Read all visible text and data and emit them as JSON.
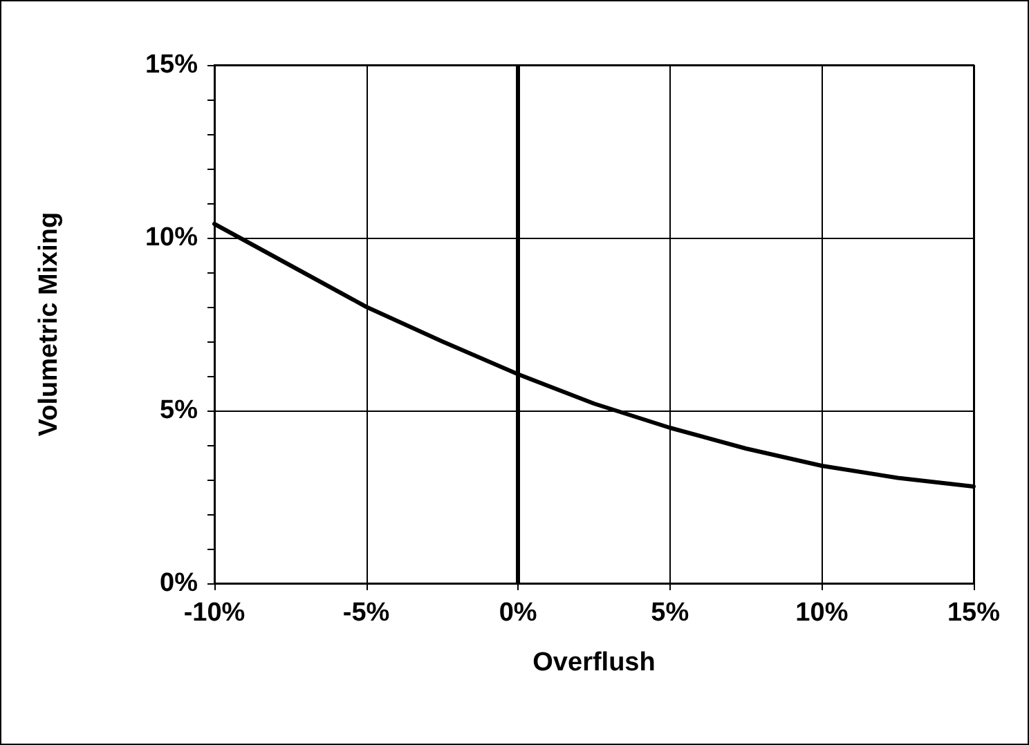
{
  "chart_data": {
    "type": "line",
    "xlabel": "Overflush",
    "ylabel": "Volumetric Mixing",
    "x": [
      -10,
      -7.5,
      -5,
      -2.5,
      0,
      2.5,
      5,
      7.5,
      10,
      12.5,
      15
    ],
    "series": [
      {
        "color": "#000000",
        "values": [
          10.4,
          9.2,
          8.0,
          7.0,
          6.05,
          5.2,
          4.5,
          3.9,
          3.4,
          3.05,
          2.8
        ]
      }
    ],
    "xlim": [
      -10,
      15
    ],
    "xticks": [
      {
        "value": -10,
        "label": "-10%"
      },
      {
        "value": -5,
        "label": "-5%"
      },
      {
        "value": 0,
        "label": "0%"
      },
      {
        "value": 5,
        "label": "5%"
      },
      {
        "value": 10,
        "label": "10%"
      },
      {
        "value": 15,
        "label": "15%"
      }
    ],
    "ylim": [
      0,
      15
    ],
    "yticks": [
      {
        "value": 0,
        "label": "0%"
      },
      {
        "value": 1,
        "label": null
      },
      {
        "value": 2,
        "label": null
      },
      {
        "value": 3,
        "label": null
      },
      {
        "value": 4,
        "label": null
      },
      {
        "value": 5,
        "label": "5%"
      },
      {
        "value": 6,
        "label": null
      },
      {
        "value": 7,
        "label": null
      },
      {
        "value": 8,
        "label": null
      },
      {
        "value": 9,
        "label": null
      },
      {
        "value": 10,
        "label": "10%"
      },
      {
        "value": 11,
        "label": null
      },
      {
        "value": 12,
        "label": null
      },
      {
        "value": 13,
        "label": null
      },
      {
        "value": 14,
        "label": null
      },
      {
        "value": 15,
        "label": "15%"
      }
    ],
    "ref_lines": [
      {
        "axis": "x",
        "value": 0,
        "color": "#000000"
      }
    ],
    "grid": true,
    "marker": "none",
    "line_style": "solid"
  }
}
